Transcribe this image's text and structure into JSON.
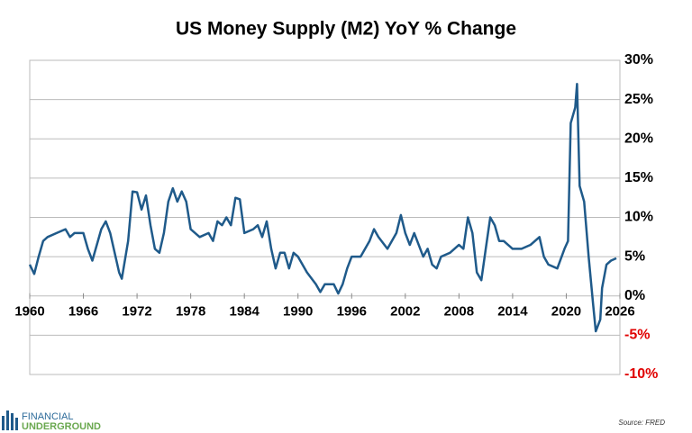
{
  "chart_data": {
    "type": "line",
    "title": "US Money Supply (M2) YoY % Change",
    "source": "Source: FRED",
    "logo": {
      "top": "FINANCIAL",
      "bottom": "UNDERGROUND"
    },
    "x": [
      1960,
      1960.5,
      1961,
      1961.5,
      1962,
      1963,
      1964,
      1964.5,
      1965,
      1966,
      1966.5,
      1967,
      1968,
      1968.5,
      1969,
      1970,
      1970.3,
      1971,
      1971.5,
      1972,
      1972.5,
      1973,
      1973.5,
      1974,
      1974.5,
      1975,
      1975.5,
      1976,
      1976.5,
      1977,
      1977.5,
      1978,
      1979,
      1980,
      1980.5,
      1981,
      1981.5,
      1982,
      1982.5,
      1983,
      1983.5,
      1984,
      1985,
      1985.5,
      1986,
      1986.5,
      1987,
      1987.5,
      1988,
      1988.5,
      1989,
      1989.5,
      1990,
      1990.5,
      1991,
      1992,
      1992.5,
      1993,
      1994,
      1994.5,
      1995,
      1995.5,
      1996,
      1997,
      1998,
      1998.5,
      1999,
      2000,
      2001,
      2001.5,
      2002,
      2002.5,
      2003,
      2004,
      2004.5,
      2005,
      2005.5,
      2006,
      2007,
      2008,
      2008.5,
      2009,
      2009.5,
      2010,
      2010.5,
      2011,
      2011.5,
      2012,
      2012.5,
      2013,
      2014,
      2015,
      2016,
      2017,
      2017.5,
      2018,
      2019,
      2019.8,
      2020.2,
      2020.5,
      2021,
      2021.2,
      2021.5,
      2022,
      2022.5,
      2023,
      2023.3,
      2023.8,
      2024,
      2024.5,
      2025,
      2025.6
    ],
    "series": [
      {
        "name": "M2 YoY % Change",
        "color": "#1f5a8a",
        "values": [
          4,
          2.8,
          5,
          7,
          7.5,
          8,
          8.5,
          7.5,
          8,
          8,
          6,
          4.5,
          8.5,
          9.5,
          8,
          3,
          2.2,
          7,
          13.3,
          13.2,
          11,
          12.8,
          9,
          6,
          5.5,
          8,
          12,
          13.7,
          12,
          13.3,
          12,
          8.5,
          7.5,
          8,
          7,
          9.5,
          9,
          10,
          9,
          12.5,
          12.3,
          8,
          8.5,
          9,
          7.5,
          9.5,
          6,
          3.5,
          5.5,
          5.5,
          3.5,
          5.5,
          5,
          4,
          3,
          1.5,
          0.5,
          1.5,
          1.5,
          0.3,
          1.5,
          3.5,
          5,
          5,
          7,
          8.5,
          7.5,
          6,
          8,
          10.3,
          8,
          6.5,
          8,
          5,
          6,
          4,
          3.5,
          5,
          5.5,
          6.5,
          6,
          10,
          8,
          3,
          2,
          6,
          10,
          9,
          7,
          7,
          6,
          6,
          6.5,
          7.5,
          5,
          4,
          3.5,
          6,
          7,
          22,
          24,
          27,
          14,
          12,
          5,
          -1,
          -4.5,
          -3,
          1,
          4,
          4.5,
          4.8
        ]
      }
    ],
    "xlim": [
      1960,
      2026
    ],
    "xticks": [
      1960,
      1966,
      1972,
      1978,
      1984,
      1990,
      1996,
      2002,
      2008,
      2014,
      2020,
      2026
    ],
    "ylim": [
      -10,
      30
    ],
    "yticks": [
      {
        "value": -10,
        "label": "-10%"
      },
      {
        "value": -5,
        "label": "-5%"
      },
      {
        "value": 0,
        "label": "0%"
      },
      {
        "value": 5,
        "label": "5%"
      },
      {
        "value": 10,
        "label": "10%"
      },
      {
        "value": 15,
        "label": "15%"
      },
      {
        "value": 20,
        "label": "20%"
      },
      {
        "value": 25,
        "label": "25%"
      },
      {
        "value": 30,
        "label": "30%"
      }
    ],
    "negative_tick_color": "#e00000",
    "grid": true
  }
}
